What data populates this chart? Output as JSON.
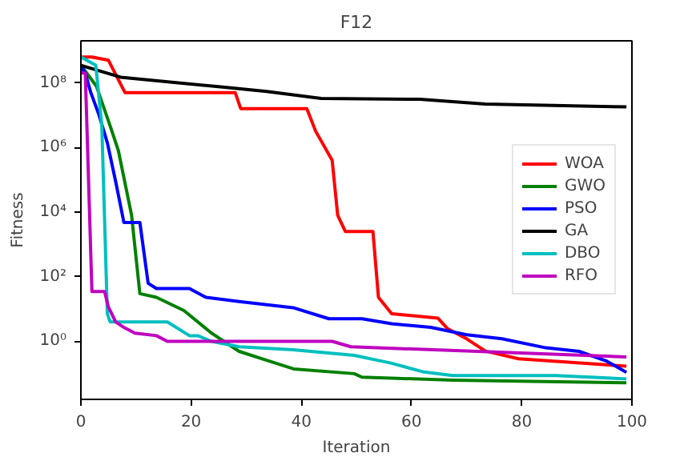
{
  "chart_data": {
    "type": "line",
    "title": "F12",
    "xlabel": "Iteration",
    "ylabel": "Fitness",
    "xlim": [
      0,
      100
    ],
    "xticks": [
      0,
      20,
      40,
      60,
      80,
      100
    ],
    "ylim": [
      0.016,
      2000000000.0
    ],
    "yticks": [
      {
        "value": 1,
        "label": "10⁰"
      },
      {
        "value": 100,
        "label": "10²"
      },
      {
        "value": 10000,
        "label": "10⁴"
      },
      {
        "value": 1000000,
        "label": "10⁶"
      },
      {
        "value": 100000000,
        "label": "10⁸"
      }
    ],
    "log": "y",
    "grid": false,
    "legend": "right",
    "line_style": "solid",
    "marker": "none",
    "series": [
      {
        "name": "WOA",
        "color": "#ff0000",
        "x": [
          0,
          2,
          5,
          8,
          28,
          29,
          41,
          42.6,
          45.6,
          46.6,
          48,
          53,
          54,
          56.4,
          64.8,
          66.5,
          70,
          73.4,
          79.4,
          99
        ],
        "values": [
          630000000.0,
          630000000.0,
          500000000.0,
          50000000.0,
          50000000.0,
          16000000.0,
          16000000.0,
          3200000.0,
          400000.0,
          8000.0,
          2500.0,
          2500.0,
          23,
          7.2,
          5.2,
          2.5,
          1.2,
          0.5,
          0.29,
          0.17
        ]
      },
      {
        "name": "GWO",
        "color": "#008000",
        "x": [
          0,
          2.8,
          5.3,
          6.8,
          9.2,
          10.7,
          13.7,
          18.7,
          23.7,
          28.7,
          33.7,
          38.6,
          49.6,
          51,
          67.5,
          99
        ],
        "values": [
          350000000.0,
          80000000.0,
          4700000.0,
          800000.0,
          8000.0,
          30,
          23,
          9,
          1.8,
          0.49,
          0.26,
          0.14,
          0.1,
          0.078,
          0.063,
          0.052
        ]
      },
      {
        "name": "PSO",
        "color": "#0000ff",
        "x": [
          0,
          0.8,
          1.8,
          3.3,
          4.8,
          6.3,
          7.8,
          10.7,
          12.2,
          13.7,
          19.7,
          22.7,
          28.7,
          38.5,
          45,
          51,
          56.4,
          63.5,
          70,
          76.4,
          84.4,
          90.4,
          95.3,
          99
        ],
        "values": [
          320000000.0,
          200000000.0,
          50000000.0,
          10000000.0,
          1400000.0,
          90000.0,
          4800.0,
          4800.0,
          63,
          43,
          43,
          23,
          17,
          11,
          5,
          5,
          3.5,
          2.7,
          1.6,
          1.2,
          0.63,
          0.49,
          0.25,
          0.11
        ]
      },
      {
        "name": "GA",
        "color": "#000000",
        "x": [
          0,
          7.2,
          12.8,
          25.7,
          33.7,
          43.6,
          61.5,
          73.4,
          99
        ],
        "values": [
          350000000.0,
          150000000.0,
          120000000.0,
          74000000.0,
          54000000.0,
          33000000.0,
          31000000.0,
          22000000.0,
          18000000.0
        ]
      },
      {
        "name": "DBO",
        "color": "#00bfbf",
        "x": [
          0,
          2.7,
          3.8,
          4.8,
          5.3,
          15.7,
          19.7,
          21.2,
          23.7,
          28.7,
          38.5,
          49.6,
          56.4,
          62,
          67.5,
          86.3,
          99
        ],
        "values": [
          630000000.0,
          350000000.0,
          4700000.0,
          7.2,
          4,
          4,
          1.5,
          1.5,
          1,
          0.68,
          0.55,
          0.37,
          0.21,
          0.115,
          0.087,
          0.087,
          0.069
        ]
      },
      {
        "name": "RFO",
        "color": "#bf00bf",
        "x": [
          0,
          0.8,
          2,
          4.3,
          5,
          6.3,
          7.8,
          9.8,
          13.7,
          15.7,
          45.6,
          49,
          99
        ],
        "values": [
          200000000.0,
          200000000.0,
          35,
          35,
          11.5,
          4,
          2.7,
          1.8,
          1.5,
          1,
          1,
          0.68,
          0.33
        ]
      }
    ]
  }
}
